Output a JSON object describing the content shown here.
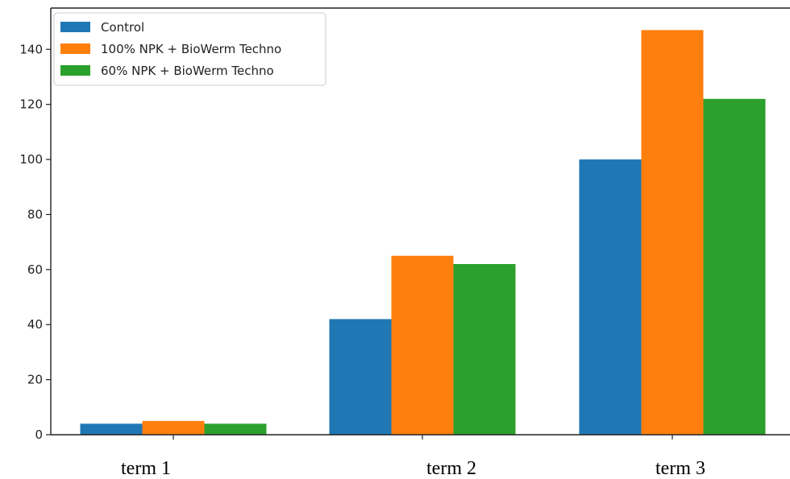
{
  "chart_data": {
    "type": "bar",
    "categories": [
      "term 1",
      "term 2",
      "term 3"
    ],
    "series": [
      {
        "name": "Control",
        "color": "#1f77b4",
        "values": [
          4,
          42,
          100
        ]
      },
      {
        "name": "100% NPK + BioWerm Techno",
        "color": "#ff7f0e",
        "values": [
          5,
          65,
          147
        ]
      },
      {
        "name": "60% NPK + BioWerm Techno",
        "color": "#2ca02c",
        "values": [
          4,
          62,
          122
        ]
      }
    ],
    "y_ticks": [
      0,
      20,
      40,
      60,
      80,
      100,
      120,
      140
    ],
    "ylim": [
      0,
      155
    ],
    "legend_position": "top-left",
    "grid": false
  }
}
